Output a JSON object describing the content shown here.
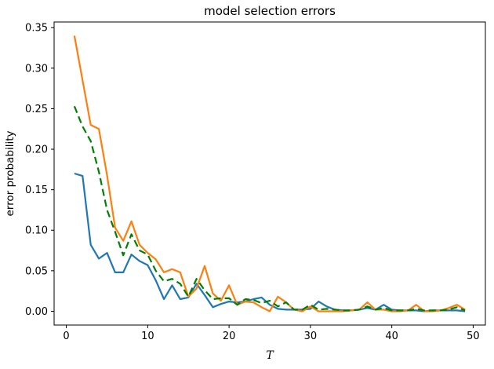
{
  "figure": {
    "background": "#ffffff",
    "spine_color": "#000000"
  },
  "chart_data": {
    "type": "line",
    "title": "model selection errors",
    "xlabel": "T",
    "ylabel": "error probability",
    "grid": false,
    "legend": "none",
    "xlim": [
      -1.5,
      51.5
    ],
    "ylim": [
      -0.017,
      0.357
    ],
    "xticks": [
      0,
      10,
      20,
      30,
      40,
      50
    ],
    "xtick_labels": [
      "0",
      "10",
      "20",
      "30",
      "40",
      "50"
    ],
    "yticks": [
      0.0,
      0.05,
      0.1,
      0.15,
      0.2,
      0.25,
      0.3,
      0.35
    ],
    "ytick_labels": [
      "0.00",
      "0.05",
      "0.10",
      "0.15",
      "0.20",
      "0.25",
      "0.30",
      "0.35"
    ],
    "x": [
      1,
      2,
      3,
      4,
      5,
      6,
      7,
      8,
      9,
      10,
      11,
      12,
      13,
      14,
      15,
      16,
      17,
      18,
      19,
      20,
      21,
      22,
      23,
      24,
      25,
      26,
      27,
      28,
      29,
      30,
      31,
      32,
      33,
      34,
      35,
      36,
      37,
      38,
      39,
      40,
      41,
      42,
      43,
      44,
      45,
      46,
      47,
      48,
      49
    ],
    "series": [
      {
        "name": "blue-series",
        "color": "#1f77b4",
        "style": "solid",
        "values": [
          0.17,
          0.167,
          0.082,
          0.065,
          0.072,
          0.048,
          0.048,
          0.07,
          0.062,
          0.057,
          0.038,
          0.015,
          0.032,
          0.015,
          0.017,
          0.034,
          0.02,
          0.005,
          0.009,
          0.012,
          0.011,
          0.012,
          0.015,
          0.017,
          0.008,
          0.003,
          0.002,
          0.002,
          0.002,
          0.003,
          0.012,
          0.006,
          0.002,
          0.001,
          0.001,
          0.002,
          0.004,
          0.002,
          0.008,
          0.002,
          0.001,
          0.001,
          0.001,
          0.0,
          0.001,
          0.001,
          0.001,
          0.001,
          0.0
        ]
      },
      {
        "name": "orange-series",
        "color": "#ff7f0e",
        "style": "solid",
        "values": [
          0.34,
          0.285,
          0.23,
          0.225,
          0.168,
          0.103,
          0.087,
          0.111,
          0.082,
          0.072,
          0.064,
          0.048,
          0.052,
          0.048,
          0.018,
          0.028,
          0.056,
          0.022,
          0.013,
          0.032,
          0.008,
          0.012,
          0.011,
          0.005,
          0.0,
          0.018,
          0.011,
          0.002,
          0.0,
          0.006,
          0.0,
          0.0,
          0.0,
          0.0,
          0.001,
          0.002,
          0.011,
          0.002,
          0.002,
          0.0,
          0.0,
          0.001,
          0.008,
          0.0,
          0.0,
          0.001,
          0.004,
          0.008,
          0.002
        ]
      },
      {
        "name": "green-series",
        "color": "#008000",
        "style": "dashed",
        "values": [
          0.253,
          0.228,
          0.21,
          0.172,
          0.125,
          0.098,
          0.069,
          0.095,
          0.075,
          0.07,
          0.05,
          0.037,
          0.04,
          0.034,
          0.018,
          0.04,
          0.026,
          0.015,
          0.016,
          0.016,
          0.008,
          0.015,
          0.014,
          0.01,
          0.013,
          0.006,
          0.011,
          0.002,
          0.002,
          0.008,
          0.002,
          0.003,
          0.002,
          0.001,
          0.001,
          0.002,
          0.006,
          0.002,
          0.004,
          0.001,
          0.001,
          0.001,
          0.003,
          0.001,
          0.001,
          0.001,
          0.002,
          0.005,
          0.001
        ]
      }
    ]
  }
}
